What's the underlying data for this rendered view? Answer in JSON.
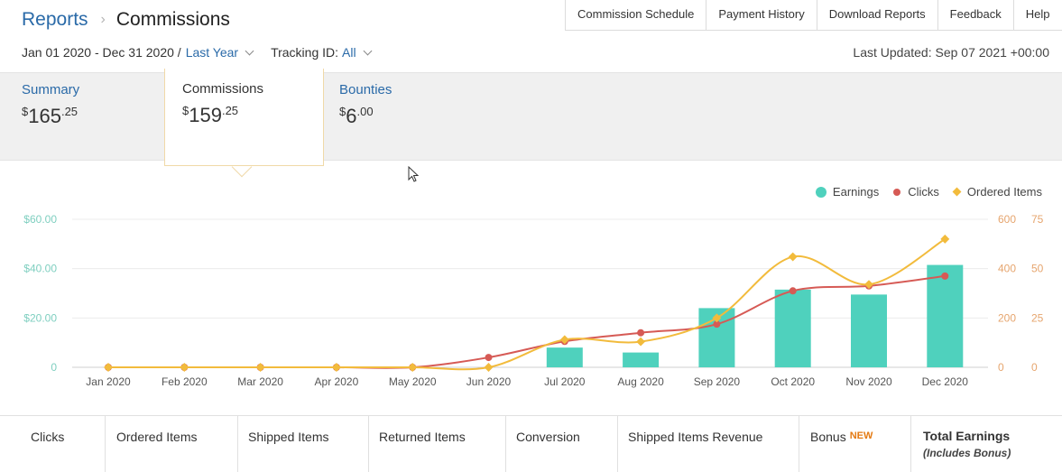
{
  "header": {
    "breadcrumb_root": "Reports",
    "breadcrumb_current": "Commissions",
    "nav": [
      "Commission Schedule",
      "Payment History",
      "Download Reports",
      "Feedback",
      "Help"
    ]
  },
  "filters": {
    "date_range": "Jan 01 2020 - Dec 31 2020 /",
    "date_preset": "Last Year",
    "tracking_label": "Tracking ID:",
    "tracking_value": "All",
    "last_updated": "Last Updated: Sep 07 2021 +00:00"
  },
  "tabs": [
    {
      "title": "Summary",
      "dollar": "$",
      "whole": "165",
      "cents": ".25"
    },
    {
      "title": "Commissions",
      "dollar": "$",
      "whole": "159",
      "cents": ".25"
    },
    {
      "title": "Bounties",
      "dollar": "$",
      "whole": "6",
      "cents": ".00"
    }
  ],
  "legend": {
    "earnings": "Earnings",
    "clicks": "Clicks",
    "ordered": "Ordered Items"
  },
  "colors": {
    "earnings": "#4fd1bd",
    "clicks": "#d65a55",
    "ordered": "#f2bb3c",
    "link": "#2a6aa8"
  },
  "chart_data": {
    "type": "bar",
    "categories": [
      "Jan 2020",
      "Feb 2020",
      "Mar 2020",
      "Apr 2020",
      "May 2020",
      "Jun 2020",
      "Jul 2020",
      "Aug 2020",
      "Sep 2020",
      "Oct 2020",
      "Nov 2020",
      "Dec 2020"
    ],
    "series": [
      {
        "name": "Earnings",
        "type": "bar",
        "axis": "left",
        "values": [
          0,
          0,
          0,
          0,
          0,
          0,
          8,
          6,
          24,
          31.5,
          29.5,
          41.5
        ]
      },
      {
        "name": "Clicks",
        "type": "line",
        "axis": "right1",
        "values": [
          0,
          0,
          0,
          0,
          0,
          40,
          105,
          140,
          175,
          310,
          330,
          370
        ]
      },
      {
        "name": "Ordered Items",
        "type": "line",
        "axis": "right2",
        "values": [
          0,
          0,
          0,
          0,
          0,
          0,
          14,
          13,
          25,
          56,
          42,
          65
        ]
      }
    ],
    "y_left": {
      "ticks": [
        "0",
        "$20.00",
        "$40.00",
        "$60.00"
      ],
      "range": [
        0,
        60
      ]
    },
    "y_right1": {
      "ticks": [
        "0",
        "200",
        "400",
        "600"
      ],
      "range": [
        0,
        600
      ]
    },
    "y_right2": {
      "ticks": [
        "0",
        "25",
        "50",
        "75"
      ],
      "range": [
        0,
        75
      ]
    },
    "grid": true,
    "legend_position": "top-right"
  },
  "summary_columns": [
    "Clicks",
    "Ordered Items",
    "Shipped Items",
    "Returned Items",
    "Conversion",
    "Shipped Items Revenue",
    "Bonus"
  ],
  "bonus_badge": "NEW",
  "total_title": "Total Earnings",
  "total_sub": "(Includes Bonus)"
}
